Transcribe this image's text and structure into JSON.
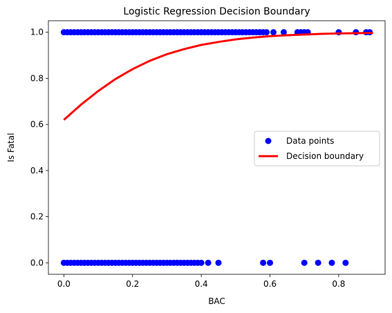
{
  "chart_data": {
    "type": "scatter",
    "title": "Logistic Regression Decision Boundary",
    "xlabel": "BAC",
    "ylabel": "Is Fatal",
    "xlim": [
      -0.045,
      0.935
    ],
    "ylim": [
      -0.05,
      1.05
    ],
    "xticks": [
      0.0,
      0.2,
      0.4,
      0.6,
      0.8
    ],
    "xtick_labels": [
      "0.0",
      "0.2",
      "0.4",
      "0.6",
      "0.8"
    ],
    "yticks": [
      0.0,
      0.2,
      0.4,
      0.6,
      0.8,
      1.0
    ],
    "ytick_labels": [
      "0.0",
      "0.2",
      "0.4",
      "0.6",
      "0.8",
      "1.0"
    ],
    "grid": false,
    "legend_position": "center-right",
    "series": [
      {
        "name": "Data points",
        "kind": "scatter",
        "color": "#0000ff",
        "points_y1_x": [
          0.0,
          0.01,
          0.02,
          0.03,
          0.04,
          0.05,
          0.06,
          0.07,
          0.08,
          0.09,
          0.1,
          0.11,
          0.12,
          0.13,
          0.14,
          0.15,
          0.16,
          0.17,
          0.18,
          0.19,
          0.2,
          0.21,
          0.22,
          0.23,
          0.24,
          0.25,
          0.26,
          0.27,
          0.28,
          0.29,
          0.3,
          0.31,
          0.32,
          0.33,
          0.34,
          0.35,
          0.36,
          0.37,
          0.38,
          0.39,
          0.4,
          0.41,
          0.42,
          0.43,
          0.44,
          0.45,
          0.46,
          0.47,
          0.48,
          0.49,
          0.5,
          0.51,
          0.52,
          0.53,
          0.54,
          0.55,
          0.56,
          0.57,
          0.58,
          0.59,
          0.61,
          0.64,
          0.68,
          0.69,
          0.7,
          0.71,
          0.8,
          0.85,
          0.88,
          0.89
        ],
        "points_y0_x": [
          0.0,
          0.01,
          0.02,
          0.03,
          0.04,
          0.05,
          0.06,
          0.07,
          0.08,
          0.09,
          0.1,
          0.11,
          0.12,
          0.13,
          0.14,
          0.15,
          0.16,
          0.17,
          0.18,
          0.19,
          0.2,
          0.21,
          0.22,
          0.23,
          0.24,
          0.25,
          0.26,
          0.27,
          0.28,
          0.29,
          0.3,
          0.31,
          0.32,
          0.33,
          0.34,
          0.35,
          0.36,
          0.37,
          0.38,
          0.39,
          0.4,
          0.42,
          0.45,
          0.58,
          0.6,
          0.7,
          0.74,
          0.78,
          0.82
        ]
      },
      {
        "name": "Decision boundary",
        "kind": "line",
        "color": "#ff0000",
        "x": [
          0.0,
          0.05,
          0.1,
          0.15,
          0.2,
          0.25,
          0.3,
          0.35,
          0.4,
          0.45,
          0.5,
          0.55,
          0.6,
          0.65,
          0.7,
          0.75,
          0.8,
          0.85,
          0.9
        ],
        "y": [
          0.62,
          0.686,
          0.745,
          0.797,
          0.84,
          0.876,
          0.905,
          0.927,
          0.945,
          0.958,
          0.969,
          0.977,
          0.983,
          0.987,
          0.99,
          0.993,
          0.995,
          0.996,
          0.997
        ]
      }
    ]
  }
}
